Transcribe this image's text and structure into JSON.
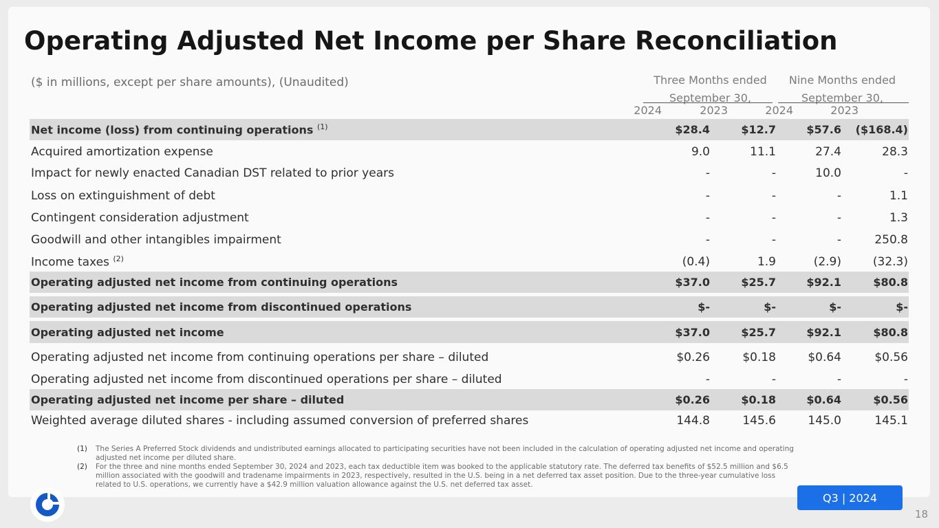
{
  "title": "Operating Adjusted Net Income per Share Reconciliation",
  "subtitle": "($ in millions, except per share amounts), (Unaudited)",
  "periods": [
    {
      "line1": "Three Months ended",
      "line2": "September 30,"
    },
    {
      "line1": "Nine Months ended",
      "line2": "September 30,"
    }
  ],
  "years": [
    "2024",
    "2023",
    "2024",
    "2023"
  ],
  "rows": [
    {
      "label": "Net income (loss) from continuing operations",
      "sup": "(1)",
      "values": [
        "$28.4",
        "$12.7",
        "$57.6",
        "($168.4)"
      ]
    },
    {
      "label": "Acquired amortization expense",
      "sup": "",
      "values": [
        "9.0",
        "11.1",
        "27.4",
        "28.3"
      ]
    },
    {
      "label": "Impact for newly enacted Canadian DST related to prior years",
      "sup": "",
      "values": [
        "-",
        "-",
        "10.0",
        "-"
      ]
    },
    {
      "label": "Loss on extinguishment of debt",
      "sup": "",
      "values": [
        "-",
        "-",
        "-",
        "1.1"
      ]
    },
    {
      "label": "Contingent consideration adjustment",
      "sup": "",
      "values": [
        "-",
        "-",
        "-",
        "1.3"
      ]
    },
    {
      "label": "Goodwill and other intangibles impairment",
      "sup": "",
      "values": [
        "-",
        "-",
        "-",
        "250.8"
      ]
    },
    {
      "label": "Income taxes",
      "sup": "(2)",
      "values": [
        "(0.4)",
        "1.9",
        "(2.9)",
        "(32.3)"
      ]
    },
    {
      "label": "Operating adjusted net income from continuing operations",
      "sup": "",
      "values": [
        "$37.0",
        "$25.7",
        "$92.1",
        "$80.8"
      ]
    },
    {
      "label": "Operating adjusted net income from discontinued operations",
      "sup": "",
      "values": [
        "$-",
        "$-",
        "$-",
        "$-"
      ]
    },
    {
      "label": "Operating adjusted net income",
      "sup": "",
      "values": [
        "$37.0",
        "$25.7",
        "$92.1",
        "$80.8"
      ]
    },
    {
      "label": "Operating adjusted net income from continuing operations per share – diluted",
      "sup": "",
      "values": [
        "$0.26",
        "$0.18",
        "$0.64",
        "$0.56"
      ]
    },
    {
      "label": "Operating adjusted net income from discontinued operations per share – diluted",
      "sup": "",
      "values": [
        "-",
        "-",
        "-",
        "-"
      ]
    },
    {
      "label": "Operating adjusted net income per share – diluted",
      "sup": "",
      "values": [
        "$0.26",
        "$0.18",
        "$0.64",
        "$0.56"
      ]
    },
    {
      "label": "Weighted average diluted shares - including assumed conversion of preferred shares",
      "sup": "",
      "values": [
        "144.8",
        "145.6",
        "145.0",
        "145.1"
      ]
    }
  ],
  "footnotes": [
    {
      "num": "(1)",
      "text": "The Series A Preferred Stock dividends and undistributed earnings allocated to participating securities have not been included in the calculation of operating adjusted net income and operating adjusted net income per diluted share."
    },
    {
      "num": "(2)",
      "text": "For the three and nine months ended September 30, 2024 and 2023, each tax deductible item was booked to the applicable statutory rate. The deferred tax benefits of $52.5 million and $6.5 million associated with the goodwill and tradename impairments in 2023, respectively, resulted in the U.S. being in a net deferred tax asset position. Due to the three-year cumulative loss related to U.S. operations, we currently have a $42.9 million valuation allowance against the U.S. net deferred tax asset."
    }
  ],
  "badge": "Q3 | 2024",
  "page_number": "18",
  "logo_icon": "ring-logo-icon",
  "colors": {
    "accent": "#1b6fe7",
    "shade": "#dadada",
    "logo": "#1559c7"
  }
}
